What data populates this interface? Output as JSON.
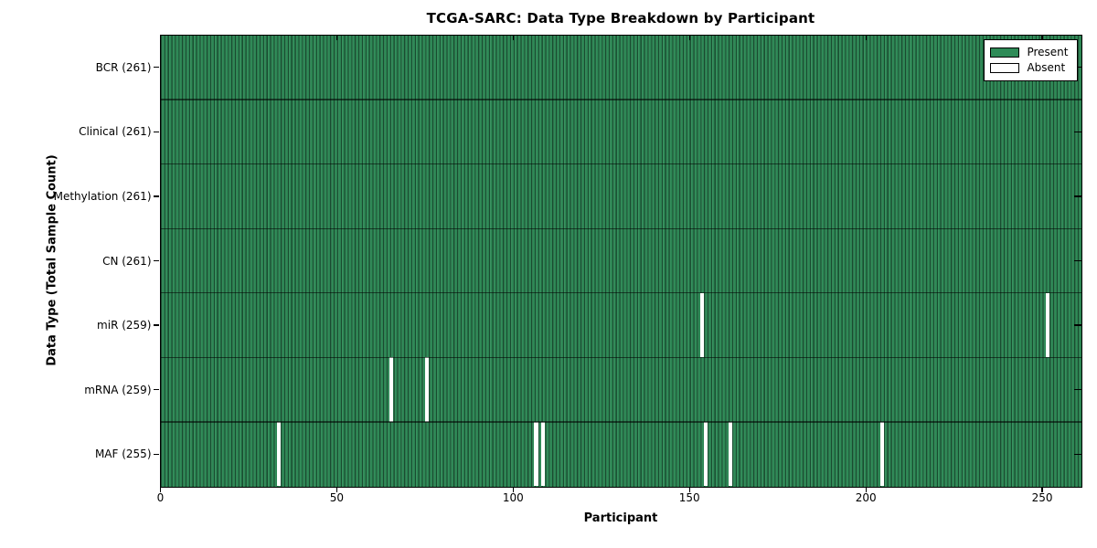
{
  "chart_data": {
    "type": "heatmap",
    "title": "TCGA-SARC: Data Type Breakdown by Participant",
    "xlabel": "Participant",
    "ylabel": "Data Type (Total Sample Count)",
    "xlim": [
      0,
      261
    ],
    "x_ticks": [
      0,
      50,
      100,
      150,
      200,
      250
    ],
    "n_participants": 261,
    "grid": false,
    "legend_position": "upper right",
    "legend": [
      {
        "label": "Present",
        "color": "#2e8b57"
      },
      {
        "label": "Absent",
        "color": "#ffffff"
      }
    ],
    "colors": {
      "present": "#2e8b57",
      "absent": "#ffffff",
      "bar_edge": "#17462c",
      "row_divider": "#1a3a28",
      "plot_border": "#000000"
    },
    "rows": [
      {
        "label": "BCR (261)",
        "data_type": "BCR",
        "total_samples": 261,
        "absent_participants": []
      },
      {
        "label": "Clinical (261)",
        "data_type": "Clinical",
        "total_samples": 261,
        "absent_participants": []
      },
      {
        "label": "Methylation (261)",
        "data_type": "Methylation",
        "total_samples": 261,
        "absent_participants": []
      },
      {
        "label": "CN (261)",
        "data_type": "CN",
        "total_samples": 261,
        "absent_participants": []
      },
      {
        "label": "miR (259)",
        "data_type": "miR",
        "total_samples": 259,
        "absent_participants": [
          153,
          251
        ]
      },
      {
        "label": "mRNA (259)",
        "data_type": "mRNA",
        "total_samples": 259,
        "absent_participants": [
          65,
          75
        ]
      },
      {
        "label": "MAF (255)",
        "data_type": "MAF",
        "total_samples": 255,
        "absent_participants": [
          33,
          106,
          108,
          154,
          161,
          204
        ]
      }
    ]
  }
}
